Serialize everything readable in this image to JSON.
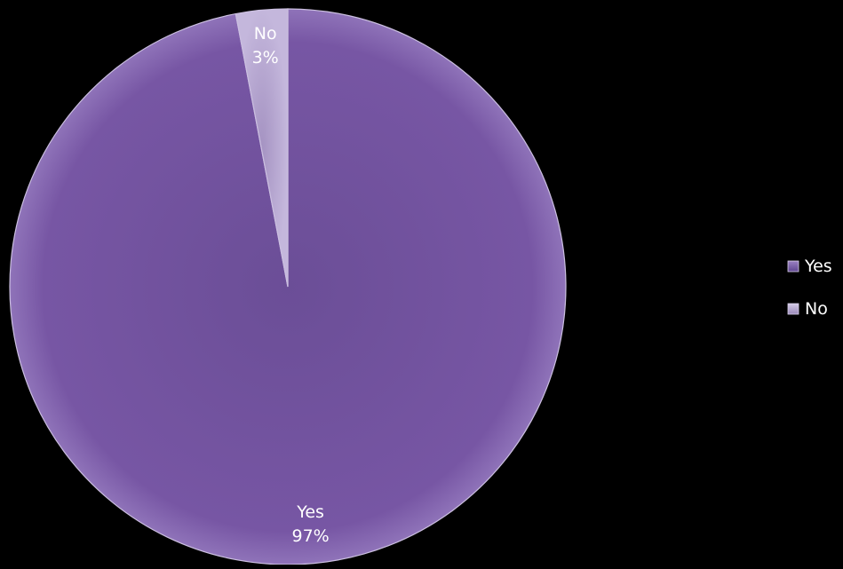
{
  "chart_data": {
    "type": "pie",
    "categories": [
      "Yes",
      "No"
    ],
    "values": [
      97,
      3
    ],
    "data_labels": [
      {
        "category": "Yes",
        "percent": "97%"
      },
      {
        "category": "No",
        "percent": "3%"
      }
    ],
    "colors": [
      "#7756a4",
      "#b6a6d1"
    ],
    "legend": {
      "position": "right",
      "items": [
        "Yes",
        "No"
      ]
    },
    "title": ""
  }
}
